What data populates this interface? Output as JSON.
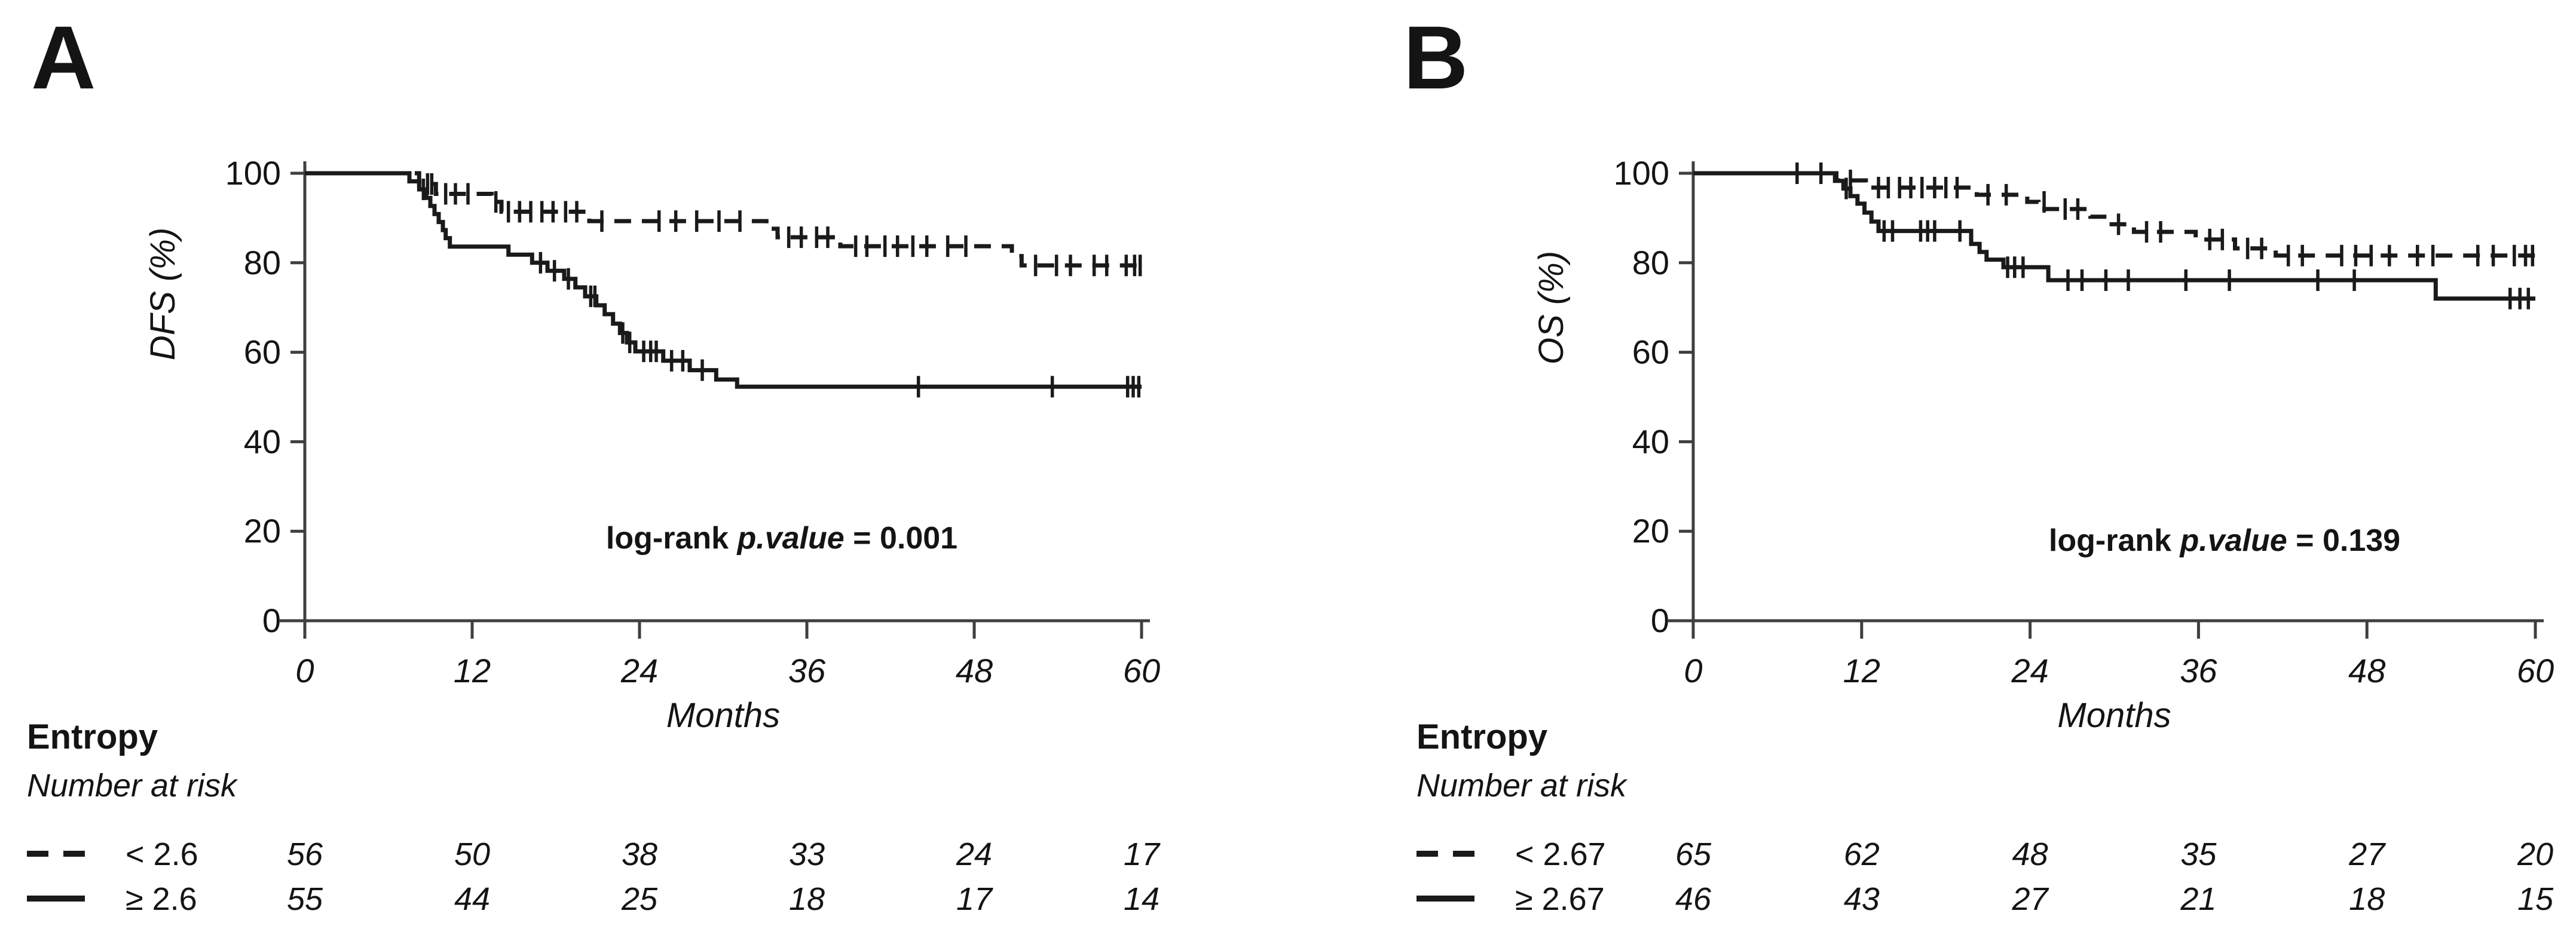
{
  "figure": {
    "background": "#ffffff",
    "text_color": "#141414",
    "axis_color": "#3f3f3f",
    "curve_color": "#1a1a1a"
  },
  "chart_data": [
    {
      "type": "line",
      "chart_kind": "kaplan-meier",
      "panel_label": "A",
      "ylabel": "DFS (%)",
      "xlabel": "Months",
      "xlim": [
        0,
        60
      ],
      "ylim": [
        0,
        100
      ],
      "x_ticks": [
        0,
        12,
        24,
        36,
        48,
        60
      ],
      "y_ticks": [
        0,
        20,
        40,
        60,
        80,
        100
      ],
      "grid": false,
      "annotation": {
        "prefix": "log-rank ",
        "italic": "p.value",
        "suffix": " = 0.001"
      },
      "series": [
        {
          "name": "< 2.6",
          "style": "dashed",
          "steps": [
            [
              0,
              100
            ],
            [
              8.2,
              100
            ],
            [
              8.2,
              97.6
            ],
            [
              9.4,
              97.6
            ],
            [
              9.4,
              95.4
            ],
            [
              13.4,
              95.4
            ],
            [
              13.4,
              93.6
            ],
            [
              14.1,
              93.6
            ],
            [
              14.1,
              91.4
            ],
            [
              20.4,
              91.4
            ],
            [
              20.4,
              89.3
            ],
            [
              33.1,
              89.3
            ],
            [
              33.1,
              87.6
            ],
            [
              33.9,
              87.6
            ],
            [
              33.9,
              85.7
            ],
            [
              38.4,
              85.7
            ],
            [
              38.4,
              83.7
            ],
            [
              50.7,
              83.7
            ],
            [
              50.7,
              81.5
            ],
            [
              51.4,
              81.5
            ],
            [
              51.4,
              79.4
            ],
            [
              60,
              79.4
            ]
          ],
          "censors": [
            [
              8.8,
              97.6
            ],
            [
              9.1,
              97.6
            ],
            [
              10.1,
              95.4
            ],
            [
              10.8,
              95.4
            ],
            [
              11.7,
              95.4
            ],
            [
              13.7,
              93.6
            ],
            [
              14.6,
              91.4
            ],
            [
              15.4,
              91.4
            ],
            [
              16.2,
              91.4
            ],
            [
              17.0,
              91.4
            ],
            [
              17.8,
              91.4
            ],
            [
              18.7,
              91.4
            ],
            [
              19.5,
              91.4
            ],
            [
              21.3,
              89.3
            ],
            [
              25.4,
              89.3
            ],
            [
              26.6,
              89.3
            ],
            [
              28.1,
              89.3
            ],
            [
              29.7,
              89.3
            ],
            [
              31.2,
              89.3
            ],
            [
              34.7,
              85.7
            ],
            [
              35.6,
              85.7
            ],
            [
              36.7,
              85.7
            ],
            [
              37.5,
              85.7
            ],
            [
              39.5,
              83.7
            ],
            [
              40.3,
              83.7
            ],
            [
              41.6,
              83.7
            ],
            [
              42.5,
              83.7
            ],
            [
              43.6,
              83.7
            ],
            [
              44.6,
              83.7
            ],
            [
              46.1,
              83.7
            ],
            [
              47.4,
              83.7
            ],
            [
              52.4,
              79.4
            ],
            [
              53.9,
              79.4
            ],
            [
              54.9,
              79.4
            ],
            [
              56.6,
              79.4
            ],
            [
              57.5,
              79.4
            ],
            [
              58.9,
              79.4
            ],
            [
              59.5,
              79.4
            ],
            [
              59.9,
              79.4
            ]
          ]
        },
        {
          "name": "≥ 2.6",
          "style": "solid",
          "steps": [
            [
              0,
              100
            ],
            [
              7.5,
              100
            ],
            [
              7.5,
              98.2
            ],
            [
              8.2,
              98.2
            ],
            [
              8.2,
              96.4
            ],
            [
              8.7,
              96.4
            ],
            [
              8.7,
              94.5
            ],
            [
              9.0,
              94.5
            ],
            [
              9.0,
              92.7
            ],
            [
              9.3,
              92.7
            ],
            [
              9.3,
              90.9
            ],
            [
              9.6,
              90.9
            ],
            [
              9.6,
              89.1
            ],
            [
              9.9,
              89.1
            ],
            [
              9.9,
              87.3
            ],
            [
              10.1,
              87.3
            ],
            [
              10.1,
              85.5
            ],
            [
              10.4,
              85.5
            ],
            [
              10.4,
              83.6
            ],
            [
              14.6,
              83.6
            ],
            [
              14.6,
              81.8
            ],
            [
              16.3,
              81.8
            ],
            [
              16.3,
              80.0
            ],
            [
              17.4,
              80.0
            ],
            [
              17.4,
              78.2
            ],
            [
              18.6,
              78.2
            ],
            [
              18.6,
              76.4
            ],
            [
              19.4,
              76.4
            ],
            [
              19.4,
              74.5
            ],
            [
              20.1,
              74.5
            ],
            [
              20.1,
              72.5
            ],
            [
              20.9,
              72.5
            ],
            [
              20.9,
              70.5
            ],
            [
              21.5,
              70.5
            ],
            [
              21.5,
              68.5
            ],
            [
              22.1,
              68.5
            ],
            [
              22.1,
              66.4
            ],
            [
              22.6,
              66.4
            ],
            [
              22.6,
              64.3
            ],
            [
              23.1,
              64.3
            ],
            [
              23.1,
              62.2
            ],
            [
              23.7,
              62.2
            ],
            [
              23.7,
              60.2
            ],
            [
              25.7,
              60.2
            ],
            [
              25.7,
              58.1
            ],
            [
              27.6,
              58.1
            ],
            [
              27.6,
              56.0
            ],
            [
              29.5,
              56.0
            ],
            [
              29.5,
              53.9
            ],
            [
              31.0,
              53.9
            ],
            [
              31.0,
              52.3
            ],
            [
              60,
              52.3
            ]
          ],
          "censors": [
            [
              8.5,
              96.4
            ],
            [
              16.9,
              80.0
            ],
            [
              17.9,
              78.2
            ],
            [
              18.9,
              76.4
            ],
            [
              20.5,
              72.5
            ],
            [
              20.8,
              72.5
            ],
            [
              22.8,
              64.3
            ],
            [
              23.3,
              62.2
            ],
            [
              24.3,
              60.2
            ],
            [
              24.8,
              60.2
            ],
            [
              25.2,
              60.2
            ],
            [
              26.3,
              58.1
            ],
            [
              27.1,
              58.1
            ],
            [
              28.5,
              56.0
            ],
            [
              44.0,
              52.3
            ],
            [
              53.6,
              52.3
            ],
            [
              59.0,
              52.3
            ],
            [
              59.4,
              52.3
            ],
            [
              59.8,
              52.3
            ]
          ]
        }
      ],
      "risk_table": {
        "title": "Entropy",
        "subtitle": "Number at risk",
        "rows": [
          {
            "label": "< 2.6",
            "style": "dashed",
            "counts": [
              56,
              50,
              38,
              33,
              24,
              17
            ]
          },
          {
            "label": "≥ 2.6",
            "style": "solid",
            "counts": [
              55,
              44,
              25,
              18,
              17,
              14
            ]
          }
        ]
      }
    },
    {
      "type": "line",
      "chart_kind": "kaplan-meier",
      "panel_label": "B",
      "ylabel": "OS (%)",
      "xlabel": "Months",
      "xlim": [
        0,
        60
      ],
      "ylim": [
        0,
        100
      ],
      "x_ticks": [
        0,
        12,
        24,
        36,
        48,
        60
      ],
      "y_ticks": [
        0,
        20,
        40,
        60,
        80,
        100
      ],
      "grid": false,
      "annotation": {
        "prefix": "log-rank ",
        "italic": "p.value",
        "suffix": " = 0.139"
      },
      "series": [
        {
          "name": "< 2.67",
          "style": "dashed",
          "steps": [
            [
              0,
              100
            ],
            [
              10.2,
              100
            ],
            [
              10.2,
              98.4
            ],
            [
              12.3,
              98.4
            ],
            [
              12.3,
              96.8
            ],
            [
              20.2,
              96.8
            ],
            [
              20.2,
              95.2
            ],
            [
              23.8,
              95.2
            ],
            [
              23.8,
              93.6
            ],
            [
              24.6,
              93.6
            ],
            [
              24.6,
              92.0
            ],
            [
              28.3,
              92.0
            ],
            [
              28.3,
              90.3
            ],
            [
              29.5,
              90.3
            ],
            [
              29.5,
              88.6
            ],
            [
              31.4,
              88.6
            ],
            [
              31.4,
              86.9
            ],
            [
              35.8,
              86.9
            ],
            [
              35.8,
              85.2
            ],
            [
              38.6,
              85.2
            ],
            [
              38.6,
              83.2
            ],
            [
              41.5,
              83.2
            ],
            [
              41.5,
              81.6
            ],
            [
              60,
              81.6
            ]
          ],
          "censors": [
            [
              7.4,
              100
            ],
            [
              9.1,
              100
            ],
            [
              11.2,
              98.4
            ],
            [
              13.2,
              96.8
            ],
            [
              13.9,
              96.8
            ],
            [
              14.7,
              96.8
            ],
            [
              15.5,
              96.8
            ],
            [
              16.3,
              96.8
            ],
            [
              17.2,
              96.8
            ],
            [
              18.0,
              96.8
            ],
            [
              18.8,
              96.8
            ],
            [
              21.0,
              95.2
            ],
            [
              22.3,
              95.2
            ],
            [
              25.0,
              93.6
            ],
            [
              26.5,
              92.0
            ],
            [
              27.4,
              92.0
            ],
            [
              30.3,
              88.6
            ],
            [
              32.3,
              86.9
            ],
            [
              33.3,
              86.9
            ],
            [
              36.8,
              85.2
            ],
            [
              37.7,
              85.2
            ],
            [
              39.5,
              83.2
            ],
            [
              40.5,
              83.2
            ],
            [
              42.4,
              81.6
            ],
            [
              43.4,
              81.6
            ],
            [
              46.2,
              81.6
            ],
            [
              47.2,
              81.6
            ],
            [
              48.3,
              81.6
            ],
            [
              49.6,
              81.6
            ],
            [
              51.6,
              81.6
            ],
            [
              52.7,
              81.6
            ],
            [
              55.9,
              81.6
            ],
            [
              57.0,
              81.6
            ],
            [
              58.5,
              81.6
            ],
            [
              59.3,
              81.6
            ],
            [
              59.8,
              81.6
            ]
          ]
        },
        {
          "name": "≥ 2.67",
          "style": "solid",
          "steps": [
            [
              0,
              100
            ],
            [
              10.1,
              100
            ],
            [
              10.1,
              98.3
            ],
            [
              10.7,
              98.3
            ],
            [
              10.7,
              96.6
            ],
            [
              11.2,
              96.6
            ],
            [
              11.2,
              94.9
            ],
            [
              11.7,
              94.9
            ],
            [
              11.7,
              93.2
            ],
            [
              12.2,
              93.2
            ],
            [
              12.2,
              91.2
            ],
            [
              12.7,
              91.2
            ],
            [
              12.7,
              89.2
            ],
            [
              13.2,
              89.2
            ],
            [
              13.2,
              87.1
            ],
            [
              19.8,
              87.1
            ],
            [
              19.8,
              84.2
            ],
            [
              20.4,
              84.2
            ],
            [
              20.4,
              82.4
            ],
            [
              20.9,
              82.4
            ],
            [
              20.9,
              80.7
            ],
            [
              22.1,
              80.7
            ],
            [
              22.1,
              79.0
            ],
            [
              25.3,
              79.0
            ],
            [
              25.3,
              76.1
            ],
            [
              52.9,
              76.1
            ],
            [
              52.9,
              72.0
            ],
            [
              60,
              72.0
            ]
          ],
          "censors": [
            [
              10.9,
              96.6
            ],
            [
              13.6,
              87.1
            ],
            [
              14.2,
              87.1
            ],
            [
              16.2,
              87.1
            ],
            [
              16.7,
              87.1
            ],
            [
              17.2,
              87.1
            ],
            [
              19.0,
              87.1
            ],
            [
              22.4,
              79.0
            ],
            [
              22.9,
              79.0
            ],
            [
              23.5,
              79.0
            ],
            [
              26.7,
              76.1
            ],
            [
              27.7,
              76.1
            ],
            [
              29.4,
              76.1
            ],
            [
              31.0,
              76.1
            ],
            [
              35.1,
              76.1
            ],
            [
              38.2,
              76.1
            ],
            [
              44.5,
              76.1
            ],
            [
              47.1,
              76.1
            ],
            [
              58.2,
              72.0
            ],
            [
              58.9,
              72.0
            ],
            [
              59.5,
              72.0
            ]
          ]
        }
      ],
      "risk_table": {
        "title": "Entropy",
        "subtitle": "Number at risk",
        "rows": [
          {
            "label": "< 2.67",
            "style": "dashed",
            "counts": [
              65,
              62,
              48,
              35,
              27,
              20
            ]
          },
          {
            "label": "≥ 2.67",
            "style": "solid",
            "counts": [
              46,
              43,
              27,
              21,
              18,
              15
            ]
          }
        ]
      }
    }
  ]
}
